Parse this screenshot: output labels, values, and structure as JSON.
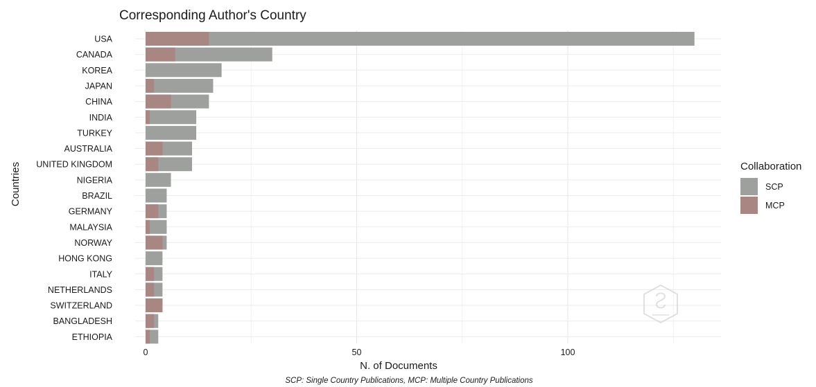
{
  "chart_data": {
    "type": "bar",
    "orientation": "horizontal",
    "stacking": "overlay",
    "title": "Corresponding Author's Country",
    "xlabel": "N. of Documents",
    "ylabel": "Countries",
    "caption": "SCP: Single Country Publications, MCP: Multiple Country Publications",
    "xlim": [
      0,
      136
    ],
    "xticks": [
      0,
      50,
      100
    ],
    "grid": true,
    "legend": {
      "title": "Collaboration",
      "position": "right",
      "entries": [
        "SCP",
        "MCP"
      ]
    },
    "categories": [
      "USA",
      "CANADA",
      "KOREA",
      "JAPAN",
      "CHINA",
      "INDIA",
      "TURKEY",
      "AUSTRALIA",
      "UNITED KINGDOM",
      "NIGERIA",
      "BRAZIL",
      "GERMANY",
      "MALAYSIA",
      "NORWAY",
      "HONG KONG",
      "ITALY",
      "NETHERLANDS",
      "SWITZERLAND",
      "BANGLADESH",
      "ETHIOPIA"
    ],
    "series": [
      {
        "name": "SCP",
        "color": "#9ea09d",
        "values": [
          130,
          30,
          18,
          16,
          15,
          12,
          12,
          11,
          11,
          6,
          5,
          5,
          5,
          5,
          4,
          4,
          4,
          4,
          3,
          3
        ]
      },
      {
        "name": "MCP",
        "color": "#a88682",
        "values": [
          15,
          7,
          0,
          2,
          6,
          1,
          0,
          4,
          3,
          0,
          0,
          3,
          1,
          4,
          0,
          2,
          2,
          4,
          2,
          1
        ]
      }
    ]
  }
}
